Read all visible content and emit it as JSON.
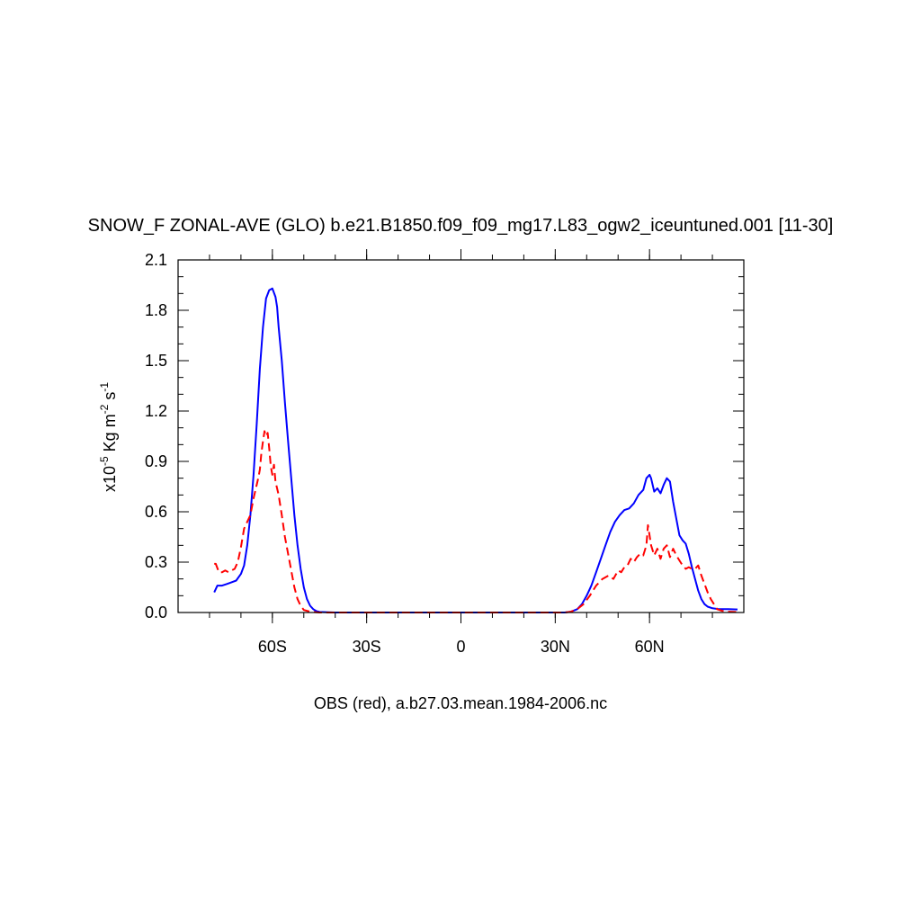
{
  "chart_data": {
    "type": "line",
    "title": "SNOW_F ZONAL-AVE (GLO) b.e21.B1850.f09_f09_mg17.L83_ogw2_iceuntuned.001 [11-30]",
    "xlabel": "OBS (red), a.b27.03.mean.1984-2006.nc",
    "ylabel": {
      "prefix": "x10",
      "exp": "-5",
      "unit": " Kg m",
      "unit_exp": "-2",
      "unit2": " s",
      "unit2_exp": "-1"
    },
    "xlim": [
      -90,
      90
    ],
    "ylim": [
      0,
      2.1
    ],
    "x_ticks": [
      {
        "value": -60,
        "label": "60S"
      },
      {
        "value": -30,
        "label": "30S"
      },
      {
        "value": 0,
        "label": "0"
      },
      {
        "value": 30,
        "label": "30N"
      },
      {
        "value": 60,
        "label": "60N"
      }
    ],
    "y_ticks": [
      {
        "value": 0.0,
        "label": "0.0"
      },
      {
        "value": 0.3,
        "label": "0.3"
      },
      {
        "value": 0.6,
        "label": "0.6"
      },
      {
        "value": 0.9,
        "label": "0.9"
      },
      {
        "value": 1.2,
        "label": "1.2"
      },
      {
        "value": 1.5,
        "label": "1.5"
      },
      {
        "value": 1.8,
        "label": "1.8"
      },
      {
        "value": 2.1,
        "label": "2.1"
      }
    ],
    "series": [
      {
        "color": "#0000ff",
        "dash": "solid",
        "points": [
          [
            -78.5,
            0.12
          ],
          [
            -77.5,
            0.16
          ],
          [
            -76,
            0.16
          ],
          [
            -74.5,
            0.17
          ],
          [
            -73,
            0.18
          ],
          [
            -71.5,
            0.19
          ],
          [
            -70,
            0.23
          ],
          [
            -69,
            0.28
          ],
          [
            -68,
            0.4
          ],
          [
            -67,
            0.58
          ],
          [
            -66,
            0.82
          ],
          [
            -65,
            1.12
          ],
          [
            -64,
            1.45
          ],
          [
            -63,
            1.7
          ],
          [
            -62,
            1.87
          ],
          [
            -61,
            1.92
          ],
          [
            -60,
            1.93
          ],
          [
            -59,
            1.88
          ],
          [
            -58.5,
            1.82
          ],
          [
            -58,
            1.7
          ],
          [
            -57,
            1.5
          ],
          [
            -56,
            1.25
          ],
          [
            -55,
            1.02
          ],
          [
            -54,
            0.8
          ],
          [
            -53,
            0.58
          ],
          [
            -52,
            0.4
          ],
          [
            -51,
            0.26
          ],
          [
            -50,
            0.15
          ],
          [
            -49,
            0.08
          ],
          [
            -48,
            0.04
          ],
          [
            -47,
            0.02
          ],
          [
            -46,
            0.008
          ],
          [
            -45,
            0.003
          ],
          [
            -40,
            0
          ],
          [
            -20,
            0
          ],
          [
            0,
            0
          ],
          [
            20,
            0
          ],
          [
            33,
            0
          ],
          [
            35,
            0.005
          ],
          [
            37,
            0.02
          ],
          [
            38.5,
            0.05
          ],
          [
            40,
            0.1
          ],
          [
            41.5,
            0.16
          ],
          [
            43,
            0.24
          ],
          [
            44.5,
            0.32
          ],
          [
            46,
            0.4
          ],
          [
            47.5,
            0.48
          ],
          [
            49,
            0.54
          ],
          [
            50.5,
            0.58
          ],
          [
            52,
            0.61
          ],
          [
            53.5,
            0.62
          ],
          [
            55,
            0.65
          ],
          [
            56.5,
            0.7
          ],
          [
            58,
            0.73
          ],
          [
            59,
            0.8
          ],
          [
            60,
            0.82
          ],
          [
            60.5,
            0.8
          ],
          [
            61.5,
            0.72
          ],
          [
            62.5,
            0.74
          ],
          [
            63.5,
            0.71
          ],
          [
            64.5,
            0.76
          ],
          [
            65.5,
            0.8
          ],
          [
            66.5,
            0.78
          ],
          [
            67.5,
            0.66
          ],
          [
            68.5,
            0.56
          ],
          [
            69.5,
            0.46
          ],
          [
            70.5,
            0.43
          ],
          [
            71.5,
            0.41
          ],
          [
            72.5,
            0.35
          ],
          [
            73.5,
            0.27
          ],
          [
            74.5,
            0.2
          ],
          [
            75.5,
            0.13
          ],
          [
            76.5,
            0.08
          ],
          [
            77.5,
            0.05
          ],
          [
            78.5,
            0.035
          ],
          [
            80,
            0.025
          ],
          [
            82,
            0.02
          ],
          [
            85,
            0.02
          ],
          [
            88,
            0.018
          ]
        ]
      },
      {
        "color": "#ff0000",
        "dash": "dashed",
        "points": [
          [
            -78.5,
            0.29
          ],
          [
            -78,
            0.29
          ],
          [
            -77,
            0.24
          ],
          [
            -76,
            0.24
          ],
          [
            -75,
            0.25
          ],
          [
            -74,
            0.24
          ],
          [
            -73,
            0.25
          ],
          [
            -72,
            0.26
          ],
          [
            -71,
            0.3
          ],
          [
            -70,
            0.39
          ],
          [
            -69,
            0.5
          ],
          [
            -68,
            0.54
          ],
          [
            -67,
            0.58
          ],
          [
            -66,
            0.68
          ],
          [
            -65,
            0.76
          ],
          [
            -64.5,
            0.8
          ],
          [
            -64,
            0.85
          ],
          [
            -63.5,
            0.95
          ],
          [
            -63,
            1.02
          ],
          [
            -62.5,
            1.08
          ],
          [
            -62,
            1.05
          ],
          [
            -61.5,
            1.07
          ],
          [
            -61,
            0.98
          ],
          [
            -60.5,
            0.87
          ],
          [
            -60,
            0.82
          ],
          [
            -59.5,
            0.88
          ],
          [
            -59,
            0.78
          ],
          [
            -58,
            0.7
          ],
          [
            -57,
            0.58
          ],
          [
            -56,
            0.45
          ],
          [
            -55,
            0.35
          ],
          [
            -54,
            0.25
          ],
          [
            -53,
            0.15
          ],
          [
            -52,
            0.08
          ],
          [
            -51,
            0.04
          ],
          [
            -50,
            0.015
          ],
          [
            -48,
            0.005
          ],
          [
            -45,
            0
          ],
          [
            -20,
            0
          ],
          [
            0,
            0
          ],
          [
            20,
            0
          ],
          [
            33,
            0
          ],
          [
            35,
            0.005
          ],
          [
            37,
            0.02
          ],
          [
            39,
            0.05
          ],
          [
            41,
            0.1
          ],
          [
            43,
            0.16
          ],
          [
            45,
            0.2
          ],
          [
            47,
            0.22
          ],
          [
            48.5,
            0.2
          ],
          [
            50,
            0.25
          ],
          [
            51,
            0.24
          ],
          [
            52,
            0.27
          ],
          [
            53,
            0.28
          ],
          [
            54,
            0.32
          ],
          [
            55,
            0.3
          ],
          [
            56,
            0.33
          ],
          [
            57,
            0.35
          ],
          [
            58,
            0.34
          ],
          [
            59,
            0.4
          ],
          [
            59.5,
            0.52
          ],
          [
            60,
            0.46
          ],
          [
            60.5,
            0.4
          ],
          [
            61.5,
            0.34
          ],
          [
            62.5,
            0.38
          ],
          [
            63.5,
            0.32
          ],
          [
            64.5,
            0.38
          ],
          [
            65.5,
            0.4
          ],
          [
            66.5,
            0.33
          ],
          [
            67.5,
            0.38
          ],
          [
            68.5,
            0.34
          ],
          [
            69.5,
            0.31
          ],
          [
            70.5,
            0.28
          ],
          [
            71.5,
            0.26
          ],
          [
            72.5,
            0.27
          ],
          [
            73.5,
            0.26
          ],
          [
            74.5,
            0.26
          ],
          [
            75.5,
            0.28
          ],
          [
            76.5,
            0.22
          ],
          [
            77.5,
            0.17
          ],
          [
            78.5,
            0.12
          ],
          [
            79.5,
            0.08
          ],
          [
            80.5,
            0.05
          ],
          [
            81.5,
            0.02
          ],
          [
            83,
            0.01
          ],
          [
            85,
            0.005
          ],
          [
            88,
            0.003
          ]
        ]
      }
    ],
    "grid": false,
    "legend": "none"
  }
}
